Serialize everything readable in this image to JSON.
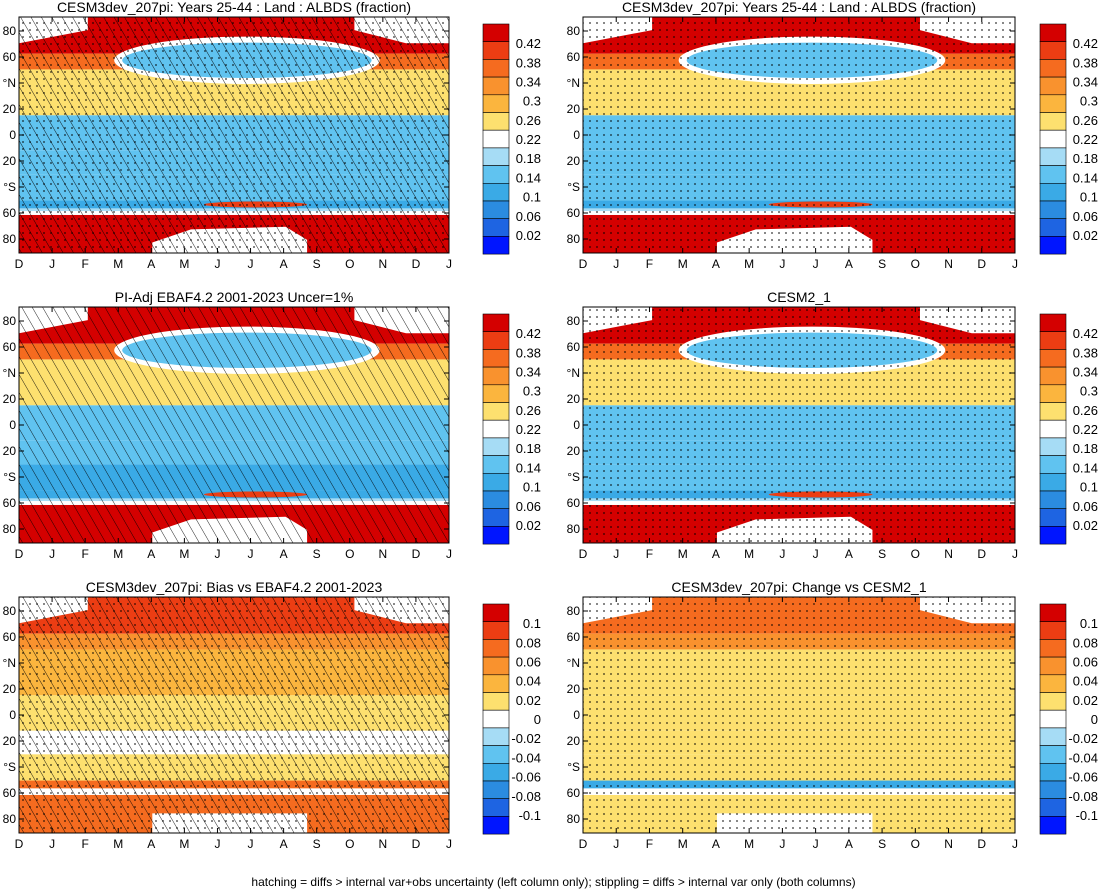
{
  "footer": "hatching = diffs > internal var+obs uncertainty (left column only); stippling = diffs > internal var only (both columns)",
  "chart_data": [
    {
      "type": "heatmap",
      "title": "CESM3dev_207pi: Years 25-44 : Land : ALBDS (fraction)",
      "x_ticks": [
        "D",
        "J",
        "F",
        "M",
        "A",
        "M",
        "J",
        "J",
        "A",
        "S",
        "O",
        "N",
        "D",
        "J"
      ],
      "y_ticks": [
        "80",
        "60",
        "°N",
        "20",
        "0",
        "20",
        "°S",
        "60",
        "80"
      ],
      "colorbar": [
        "0.42",
        "0.38",
        "0.34",
        "0.3",
        "0.26",
        "0.22",
        "0.18",
        "0.14",
        "0.1",
        "0.06",
        "0.02"
      ],
      "scale": "albedo",
      "layers": [
        "hatch",
        "stipple"
      ],
      "bands": [
        {
          "lat": [
            62,
            90
          ],
          "value": 0.44
        },
        {
          "lat": [
            50,
            62
          ],
          "value": 0.36
        },
        {
          "lat": [
            15,
            50
          ],
          "value": 0.28
        },
        {
          "lat": [
            -12,
            15
          ],
          "value": 0.16
        },
        {
          "lat": [
            -30,
            -12
          ],
          "value": 0.17
        },
        {
          "lat": [
            -50,
            -30
          ],
          "value": 0.15
        },
        {
          "lat": [
            -56,
            -50
          ],
          "value": 0.12
        },
        {
          "lat": [
            -60,
            -56
          ],
          "value": 0.21
        },
        {
          "lat": [
            -90,
            -60
          ],
          "value": 0.44
        }
      ]
    },
    {
      "type": "heatmap",
      "title": "CESM3dev_207pi: Years 25-44 : Land : ALBDS (fraction)",
      "x_ticks": [
        "D",
        "J",
        "F",
        "M",
        "A",
        "M",
        "J",
        "J",
        "A",
        "S",
        "O",
        "N",
        "D",
        "J"
      ],
      "y_ticks": [
        "80",
        "60",
        "°N",
        "20",
        "0",
        "20",
        "°S",
        "60",
        "80"
      ],
      "colorbar": [
        "0.42",
        "0.38",
        "0.34",
        "0.3",
        "0.26",
        "0.22",
        "0.18",
        "0.14",
        "0.1",
        "0.06",
        "0.02"
      ],
      "scale": "albedo",
      "layers": [
        "stipple"
      ],
      "bands": [
        {
          "lat": [
            62,
            90
          ],
          "value": 0.44
        },
        {
          "lat": [
            50,
            62
          ],
          "value": 0.36
        },
        {
          "lat": [
            15,
            50
          ],
          "value": 0.28
        },
        {
          "lat": [
            -12,
            15
          ],
          "value": 0.16
        },
        {
          "lat": [
            -30,
            -12
          ],
          "value": 0.17
        },
        {
          "lat": [
            -50,
            -30
          ],
          "value": 0.15
        },
        {
          "lat": [
            -56,
            -50
          ],
          "value": 0.12
        },
        {
          "lat": [
            -60,
            -56
          ],
          "value": 0.21
        },
        {
          "lat": [
            -90,
            -60
          ],
          "value": 0.44
        }
      ]
    },
    {
      "type": "heatmap",
      "title": "PI-Adj EBAF4.2 2001-2023 Uncer=1%",
      "x_ticks": [
        "D",
        "J",
        "F",
        "M",
        "A",
        "M",
        "J",
        "J",
        "A",
        "S",
        "O",
        "N",
        "D",
        "J"
      ],
      "y_ticks": [
        "80",
        "60",
        "°N",
        "20",
        "0",
        "20",
        "°S",
        "60",
        "80"
      ],
      "colorbar": [
        "0.42",
        "0.38",
        "0.34",
        "0.3",
        "0.26",
        "0.22",
        "0.18",
        "0.14",
        "0.1",
        "0.06",
        "0.02"
      ],
      "scale": "albedo",
      "layers": [
        "hatch"
      ],
      "bands": [
        {
          "lat": [
            62,
            90
          ],
          "value": 0.44
        },
        {
          "lat": [
            50,
            62
          ],
          "value": 0.36
        },
        {
          "lat": [
            15,
            50
          ],
          "value": 0.27
        },
        {
          "lat": [
            -12,
            15
          ],
          "value": 0.15
        },
        {
          "lat": [
            -30,
            -12
          ],
          "value": 0.16
        },
        {
          "lat": [
            -50,
            -30
          ],
          "value": 0.14
        },
        {
          "lat": [
            -56,
            -50
          ],
          "value": 0.13
        },
        {
          "lat": [
            -60,
            -56
          ],
          "value": 0.21
        },
        {
          "lat": [
            -90,
            -60
          ],
          "value": 0.44
        }
      ]
    },
    {
      "type": "heatmap",
      "title": "CESM2_1",
      "x_ticks": [
        "D",
        "J",
        "F",
        "M",
        "A",
        "M",
        "J",
        "J",
        "A",
        "S",
        "O",
        "N",
        "D",
        "J"
      ],
      "y_ticks": [
        "80",
        "60",
        "°N",
        "20",
        "0",
        "20",
        "°S",
        "60",
        "80"
      ],
      "colorbar": [
        "0.42",
        "0.38",
        "0.34",
        "0.3",
        "0.26",
        "0.22",
        "0.18",
        "0.14",
        "0.1",
        "0.06",
        "0.02"
      ],
      "scale": "albedo",
      "layers": [
        "stipple"
      ],
      "bands": [
        {
          "lat": [
            62,
            90
          ],
          "value": 0.44
        },
        {
          "lat": [
            50,
            62
          ],
          "value": 0.36
        },
        {
          "lat": [
            15,
            50
          ],
          "value": 0.27
        },
        {
          "lat": [
            -12,
            15
          ],
          "value": 0.15
        },
        {
          "lat": [
            -30,
            -12
          ],
          "value": 0.16
        },
        {
          "lat": [
            -50,
            -30
          ],
          "value": 0.15
        },
        {
          "lat": [
            -56,
            -50
          ],
          "value": 0.12
        },
        {
          "lat": [
            -60,
            -56
          ],
          "value": 0.21
        },
        {
          "lat": [
            -90,
            -60
          ],
          "value": 0.44
        }
      ]
    },
    {
      "type": "heatmap",
      "title": "CESM3dev_207pi: Bias vs EBAF4.2 2001-2023",
      "x_ticks": [
        "D",
        "J",
        "F",
        "M",
        "A",
        "M",
        "J",
        "J",
        "A",
        "S",
        "O",
        "N",
        "D",
        "J"
      ],
      "y_ticks": [
        "80",
        "60",
        "°N",
        "20",
        "0",
        "20",
        "°S",
        "60",
        "80"
      ],
      "colorbar": [
        "0.1",
        "0.08",
        "0.06",
        "0.04",
        "0.02",
        "0",
        "-0.02",
        "-0.04",
        "-0.06",
        "-0.08",
        "-0.1"
      ],
      "scale": "diff",
      "layers": [
        "hatch",
        "stipple"
      ],
      "bands": [
        {
          "lat": [
            62,
            90
          ],
          "value": 0.09
        },
        {
          "lat": [
            50,
            62
          ],
          "value": 0.05
        },
        {
          "lat": [
            15,
            50
          ],
          "value": 0.03
        },
        {
          "lat": [
            -12,
            15
          ],
          "value": 0.02
        },
        {
          "lat": [
            -30,
            -12
          ],
          "value": 0.0
        },
        {
          "lat": [
            -50,
            -30
          ],
          "value": 0.02
        },
        {
          "lat": [
            -56,
            -50
          ],
          "value": 0.07
        },
        {
          "lat": [
            -60,
            -56
          ],
          "value": 0.0
        },
        {
          "lat": [
            -90,
            -60
          ],
          "value": 0.08
        }
      ]
    },
    {
      "type": "heatmap",
      "title": "CESM3dev_207pi: Change vs CESM2_1",
      "x_ticks": [
        "D",
        "J",
        "F",
        "M",
        "A",
        "M",
        "J",
        "J",
        "A",
        "S",
        "O",
        "N",
        "D",
        "J"
      ],
      "y_ticks": [
        "80",
        "60",
        "°N",
        "20",
        "0",
        "20",
        "°S",
        "60",
        "80"
      ],
      "colorbar": [
        "0.1",
        "0.08",
        "0.06",
        "0.04",
        "0.02",
        "0",
        "-0.02",
        "-0.04",
        "-0.06",
        "-0.08",
        "-0.1"
      ],
      "scale": "diff",
      "layers": [
        "stipple"
      ],
      "bands": [
        {
          "lat": [
            62,
            90
          ],
          "value": 0.07
        },
        {
          "lat": [
            50,
            62
          ],
          "value": 0.05
        },
        {
          "lat": [
            15,
            50
          ],
          "value": 0.02
        },
        {
          "lat": [
            -12,
            15
          ],
          "value": 0.015
        },
        {
          "lat": [
            -30,
            -12
          ],
          "value": 0.02
        },
        {
          "lat": [
            -50,
            -30
          ],
          "value": 0.015
        },
        {
          "lat": [
            -56,
            -50
          ],
          "value": -0.05
        },
        {
          "lat": [
            -60,
            -56
          ],
          "value": 0.0
        },
        {
          "lat": [
            -90,
            -60
          ],
          "value": 0.02
        }
      ]
    }
  ]
}
